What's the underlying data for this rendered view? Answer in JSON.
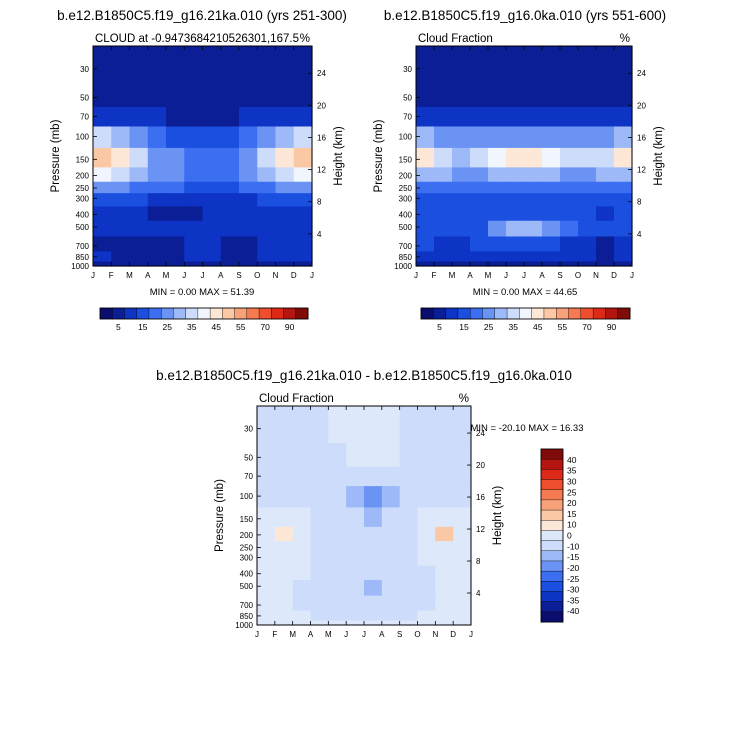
{
  "figure": {
    "title_top_left": "b.e12.B1850C5.f19_g16.21ka.010 (yrs 251-300)",
    "title_top_right": "b.e12.B1850C5.f19_g16.0ka.010 (yrs 551-600)",
    "title_bottom": "b.e12.B1850C5.f19_g16.21ka.010 - b.e12.B1850C5.f19_g16.0ka.010"
  },
  "colors": {
    "abs_levels": [
      "#0a0d6e",
      "#0b1e96",
      "#0d34c4",
      "#1a4fe0",
      "#3b6ef0",
      "#6a93f4",
      "#9db9f8",
      "#cddcfb",
      "#f1f5fd",
      "#fde7d6",
      "#fbc8a6",
      "#f8a27a",
      "#f57a52",
      "#ef4e2e",
      "#dd2a18",
      "#b51510",
      "#7f0c09"
    ],
    "diff_levels": [
      "#0a0d6e",
      "#0b1e96",
      "#0d34c4",
      "#1a4fe0",
      "#3b6ef0",
      "#6a93f4",
      "#9db9f8",
      "#cddcfb",
      "#dde8fb",
      "#fde7d6",
      "#fbc8a6",
      "#f8a27a",
      "#f57a52",
      "#ef4e2e",
      "#dd2a18",
      "#b51510",
      "#7f0c09"
    ]
  },
  "chart_data": [
    {
      "type": "heatmap",
      "title": "b.e12.B1850C5.f19_g16.21ka.010 (yrs 251-300)",
      "subtitle_left": "CLOUD at -0.9473684210526301,167.5",
      "subtitle_right": "%",
      "xlabel": "",
      "ylabel": "Pressure (mb)",
      "ylabel_right": "Height (km)",
      "x_ticks": [
        "J",
        "F",
        "M",
        "A",
        "M",
        "J",
        "J",
        "A",
        "S",
        "O",
        "N",
        "D",
        "J"
      ],
      "y_ticks": [
        30,
        50,
        70,
        100,
        150,
        200,
        250,
        300,
        400,
        500,
        700,
        850,
        1000
      ],
      "y2_ticks": [
        24,
        20,
        16,
        12,
        8,
        4
      ],
      "ylim": [
        1000,
        20
      ],
      "y_scale": "log",
      "stats_text": "MIN =  0.00 MAX =  51.39",
      "colorbar_labels": [
        "5",
        "15",
        "25",
        "35",
        "45",
        "55",
        "70",
        "90"
      ],
      "z": [
        [
          0,
          0,
          0,
          0,
          0,
          0,
          0,
          0,
          0,
          0,
          0,
          0
        ],
        [
          2,
          2,
          2,
          2,
          2,
          2,
          2,
          2,
          2,
          2,
          2,
          2
        ],
        [
          8,
          7,
          6,
          5,
          4,
          4,
          4,
          4,
          5,
          6,
          7,
          8
        ],
        [
          30,
          27,
          20,
          16,
          14,
          13,
          13,
          13,
          15,
          20,
          27,
          30
        ],
        [
          48,
          42,
          30,
          24,
          20,
          18,
          18,
          18,
          22,
          30,
          42,
          48
        ],
        [
          36,
          32,
          26,
          22,
          20,
          18,
          18,
          18,
          22,
          26,
          32,
          36
        ],
        [
          22,
          20,
          18,
          16,
          15,
          14,
          14,
          14,
          16,
          18,
          20,
          22
        ],
        [
          10,
          10,
          10,
          9,
          9,
          8,
          8,
          8,
          9,
          10,
          10,
          10
        ],
        [
          7,
          7,
          6,
          3,
          2,
          4,
          6,
          6,
          6,
          7,
          7,
          7
        ],
        [
          8,
          8,
          8,
          7,
          7,
          7,
          7,
          6,
          7,
          8,
          8,
          8
        ],
        [
          4,
          2,
          2,
          2,
          4,
          5,
          5,
          3,
          4,
          5,
          5,
          5
        ],
        [
          5,
          4,
          3,
          3,
          4,
          5,
          5,
          4,
          4,
          5,
          5,
          5
        ],
        [
          1,
          1,
          1,
          1,
          1,
          1,
          1,
          1,
          1,
          1,
          1,
          1
        ]
      ]
    },
    {
      "type": "heatmap",
      "title": "b.e12.B1850C5.f19_g16.0ka.010 (yrs 551-600)",
      "subtitle_left": "Cloud Fraction",
      "subtitle_right": "%",
      "xlabel": "",
      "ylabel": "Pressure (mb)",
      "ylabel_right": "Height (km)",
      "x_ticks": [
        "J",
        "F",
        "M",
        "A",
        "M",
        "J",
        "J",
        "A",
        "S",
        "O",
        "N",
        "D",
        "J"
      ],
      "y_ticks": [
        30,
        50,
        70,
        100,
        150,
        200,
        250,
        300,
        400,
        500,
        700,
        850,
        1000
      ],
      "y2_ticks": [
        24,
        20,
        16,
        12,
        8,
        4
      ],
      "ylim": [
        1000,
        20
      ],
      "y_scale": "log",
      "stats_text": "MIN =  0.00 MAX =  44.65",
      "colorbar_labels": [
        "5",
        "15",
        "25",
        "35",
        "45",
        "55",
        "70",
        "90"
      ],
      "z": [
        [
          0,
          0,
          0,
          0,
          0,
          0,
          0,
          0,
          0,
          0,
          0,
          0
        ],
        [
          2,
          2,
          2,
          2,
          2,
          2,
          2,
          2,
          2,
          2,
          2,
          2
        ],
        [
          9,
          8,
          7,
          6,
          6,
          6,
          6,
          6,
          6,
          7,
          8,
          9
        ],
        [
          26,
          24,
          22,
          20,
          22,
          24,
          24,
          24,
          22,
          20,
          24,
          26
        ],
        [
          40,
          32,
          26,
          30,
          36,
          42,
          40,
          36,
          30,
          30,
          34,
          40
        ],
        [
          28,
          26,
          24,
          24,
          26,
          28,
          28,
          26,
          24,
          24,
          26,
          28
        ],
        [
          18,
          18,
          16,
          16,
          18,
          18,
          18,
          18,
          16,
          16,
          18,
          18
        ],
        [
          12,
          12,
          12,
          12,
          12,
          12,
          12,
          12,
          12,
          12,
          12,
          12
        ],
        [
          12,
          12,
          12,
          12,
          12,
          12,
          14,
          14,
          12,
          10,
          6,
          10
        ],
        [
          12,
          12,
          12,
          14,
          20,
          26,
          26,
          24,
          18,
          14,
          12,
          12
        ],
        [
          10,
          8,
          8,
          10,
          12,
          14,
          14,
          12,
          8,
          5,
          3,
          6
        ],
        [
          6,
          5,
          5,
          6,
          7,
          8,
          8,
          7,
          6,
          5,
          4,
          5
        ],
        [
          1,
          1,
          1,
          1,
          1,
          1,
          1,
          1,
          1,
          1,
          1,
          1
        ]
      ]
    },
    {
      "type": "heatmap",
      "title": "b.e12.B1850C5.f19_g16.21ka.010 - b.e12.B1850C5.f19_g16.0ka.010",
      "subtitle_left": "Cloud Fraction",
      "subtitle_right": "%",
      "xlabel": "",
      "ylabel": "Pressure (mb)",
      "ylabel_right": "Height (km)",
      "x_ticks": [
        "J",
        "F",
        "M",
        "A",
        "M",
        "J",
        "J",
        "A",
        "S",
        "O",
        "N",
        "D",
        "J"
      ],
      "y_ticks": [
        30,
        50,
        70,
        100,
        150,
        200,
        250,
        300,
        400,
        500,
        700,
        850,
        1000
      ],
      "y2_ticks": [
        24,
        20,
        16,
        12,
        8,
        4
      ],
      "ylim": [
        1000,
        20
      ],
      "y_scale": "log",
      "stats_text": "MIN = -20.10 MAX =  16.33",
      "colorbar_labels": [
        "40",
        "35",
        "30",
        "25",
        "20",
        "15",
        "10",
        "0",
        "-10",
        "-15",
        "-20",
        "-25",
        "-30",
        "-35",
        "-40"
      ],
      "z": [
        [
          -2,
          -2,
          -2,
          -2,
          3,
          4,
          4,
          4,
          -2,
          -2,
          -2,
          -2
        ],
        [
          -2,
          -2,
          -2,
          -2,
          -2,
          3,
          3,
          3,
          -2,
          -2,
          -2,
          -2
        ],
        [
          -2,
          -2,
          -2,
          -2,
          -2,
          -2,
          -2,
          -2,
          -2,
          -2,
          -2,
          -2
        ],
        [
          -2,
          -2,
          -2,
          -2,
          -2,
          -12,
          -16,
          -12,
          -2,
          -2,
          -2,
          -2
        ],
        [
          4,
          6,
          4,
          -2,
          -2,
          -10,
          -14,
          -10,
          -2,
          4,
          6,
          4
        ],
        [
          8,
          12,
          6,
          -2,
          -2,
          -6,
          -8,
          -6,
          -2,
          6,
          16,
          8
        ],
        [
          6,
          8,
          4,
          -2,
          -2,
          -2,
          -2,
          -2,
          -2,
          4,
          8,
          6
        ],
        [
          3,
          3,
          3,
          -2,
          -2,
          -2,
          -2,
          -2,
          -2,
          3,
          3,
          3
        ],
        [
          3,
          3,
          2,
          -2,
          -2,
          -2,
          -2,
          -2,
          -2,
          -2,
          3,
          3
        ],
        [
          3,
          2,
          -2,
          -2,
          -2,
          -10,
          -12,
          -10,
          -2,
          -2,
          2,
          3
        ],
        [
          3,
          3,
          -2,
          -2,
          -2,
          -2,
          -2,
          -2,
          -2,
          -2,
          3,
          3
        ],
        [
          3,
          3,
          3,
          -2,
          -2,
          -2,
          -2,
          -2,
          -2,
          3,
          3,
          3
        ],
        [
          3,
          3,
          3,
          3,
          3,
          3,
          3,
          3,
          3,
          3,
          3,
          3
        ]
      ]
    }
  ]
}
